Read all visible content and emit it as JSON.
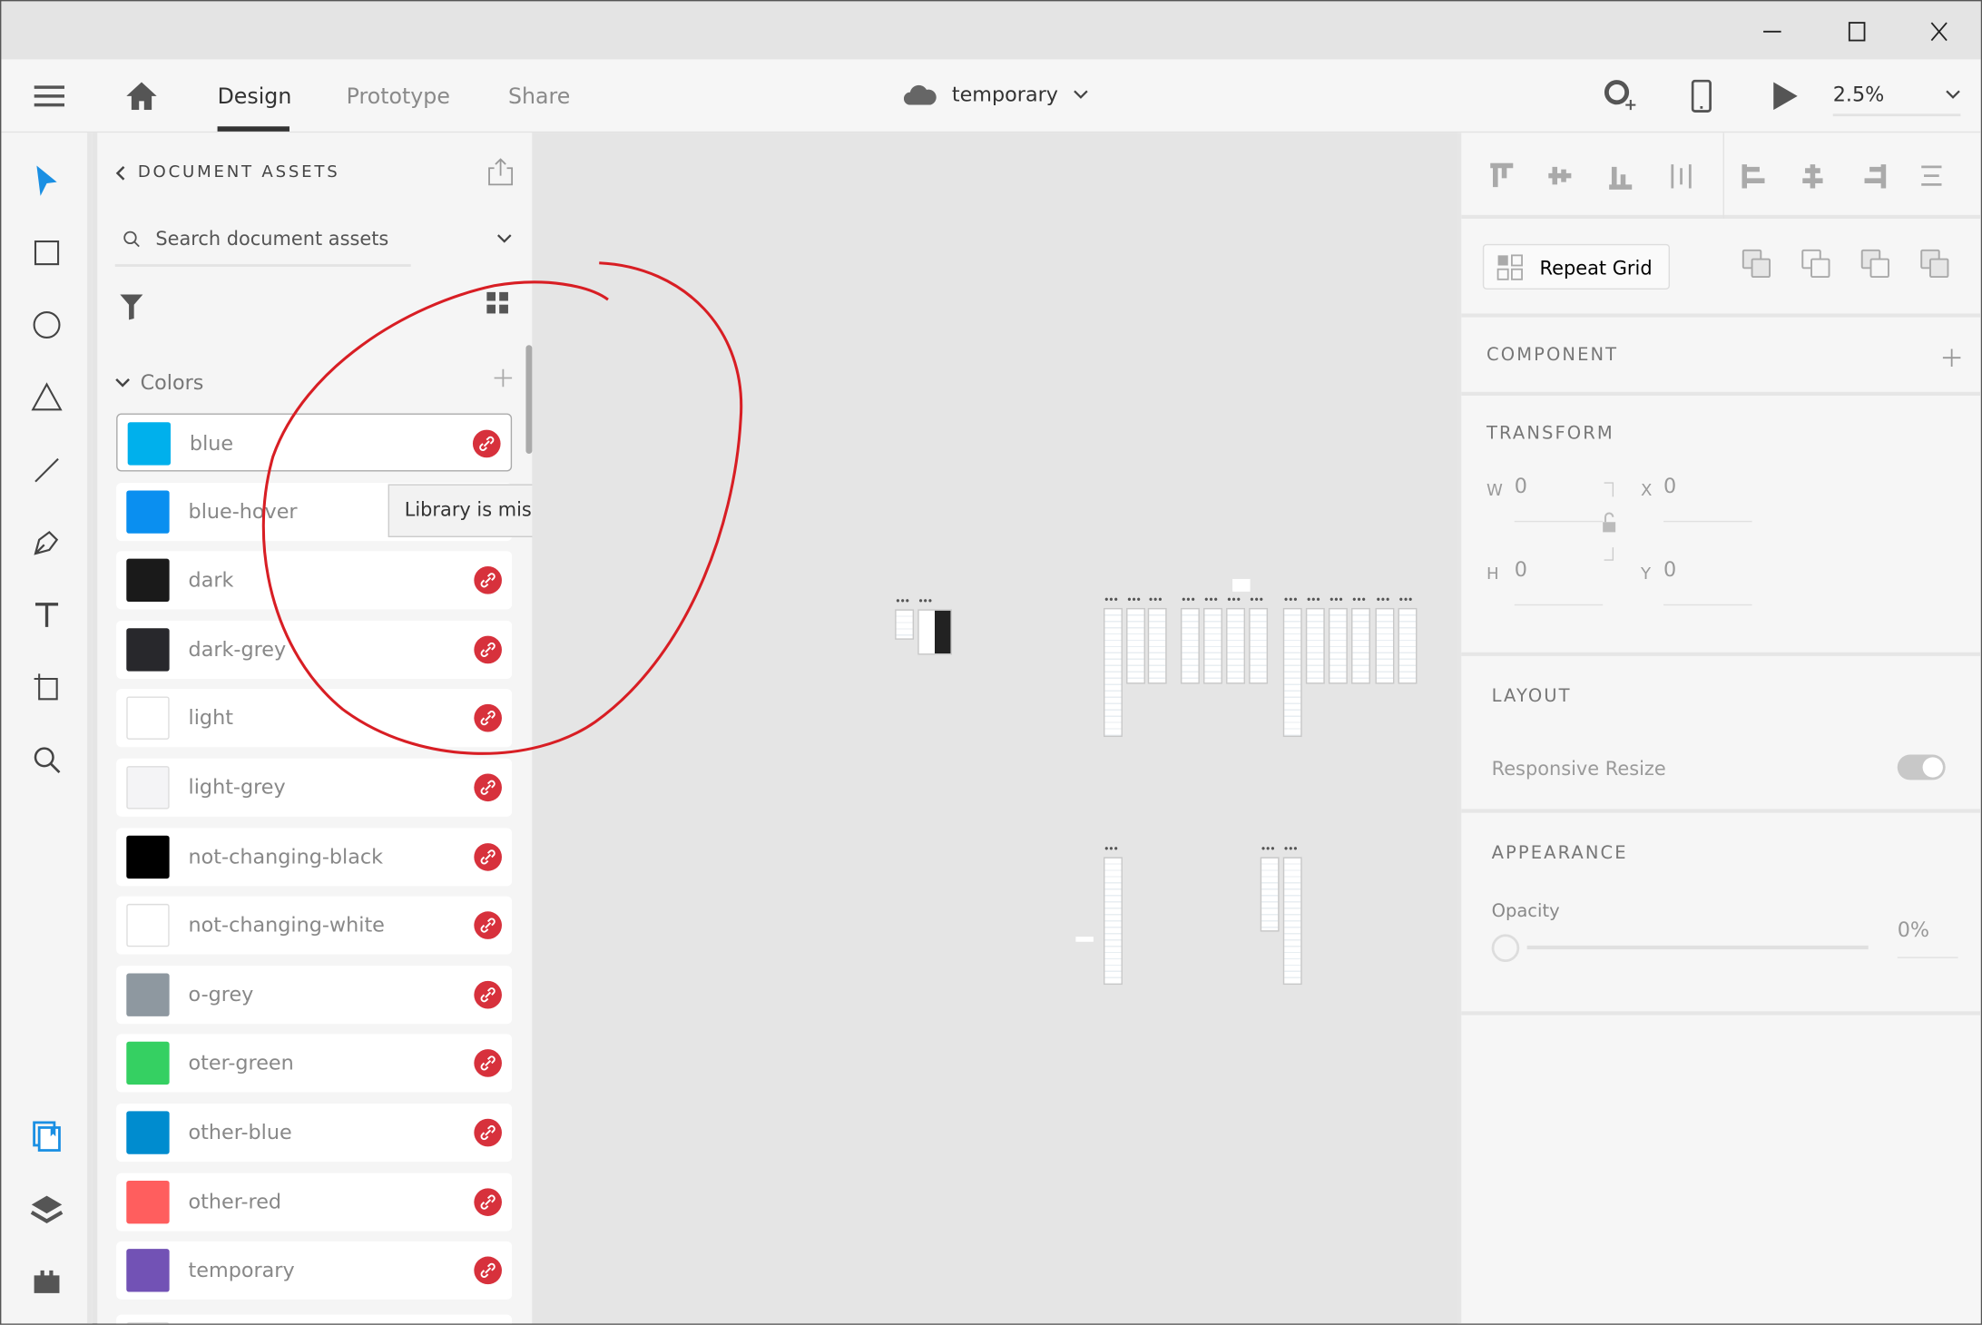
{
  "window": {
    "controls": [
      "minimize",
      "maximize",
      "close"
    ]
  },
  "topbar": {
    "tabs": [
      {
        "label": "Design",
        "active": true
      },
      {
        "label": "Prototype",
        "active": false
      },
      {
        "label": "Share",
        "active": false
      }
    ],
    "document_name": "temporary",
    "zoom": "2.5%"
  },
  "tools": [
    "select",
    "rectangle",
    "ellipse",
    "polygon",
    "line",
    "pen",
    "text",
    "artboard",
    "zoom",
    "assets",
    "layers",
    "plugins"
  ],
  "assets": {
    "title": "DOCUMENT ASSETS",
    "search_placeholder": "Search document assets",
    "colors_label": "Colors",
    "tooltip": "Library is missing",
    "colors": [
      {
        "name": "blue",
        "hex": "#00b0ec"
      },
      {
        "name": "blue-hover",
        "hex": "#0a8ff0"
      },
      {
        "name": "dark",
        "hex": "#1a1a1a"
      },
      {
        "name": "dark-grey",
        "hex": "#28282c"
      },
      {
        "name": "light",
        "hex": "#ffffff"
      },
      {
        "name": "light-grey",
        "hex": "#f4f4f6"
      },
      {
        "name": "not-changing-black",
        "hex": "#000000"
      },
      {
        "name": "not-changing-white",
        "hex": "#ffffff"
      },
      {
        "name": "o-grey",
        "hex": "#8e98a0"
      },
      {
        "name": "oter-green",
        "hex": "#35d062"
      },
      {
        "name": "other-blue",
        "hex": "#008ccf"
      },
      {
        "name": "other-red",
        "hex": "#ff5e5e"
      },
      {
        "name": "temporary",
        "hex": "#7252b5"
      }
    ],
    "missing_link_color": "#d7313c",
    "accent": "#1a8fe3",
    "annotation_color": "#d81e24"
  },
  "inspector": {
    "repeat_grid": "Repeat Grid",
    "component": "COMPONENT",
    "transform": "TRANSFORM",
    "w_label": "W",
    "w": "0",
    "h_label": "H",
    "h": "0",
    "x_label": "X",
    "x": "0",
    "y_label": "Y",
    "y": "0",
    "layout": "LAYOUT",
    "responsive_resize": "Responsive Resize",
    "responsive_resize_on": true,
    "appearance": "APPEARANCE",
    "opacity_label": "Opacity",
    "opacity": "0%"
  }
}
